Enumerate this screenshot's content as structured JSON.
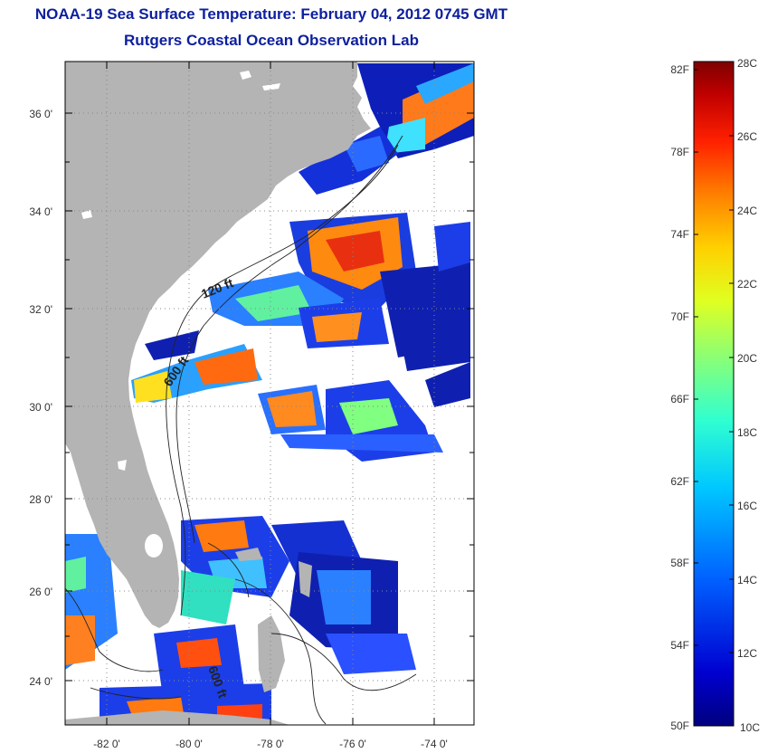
{
  "title": "NOAA-19 Sea Surface Temperature:  February 04, 2012 0745 GMT",
  "subtitle": "Rutgers Coastal Ocean Observation Lab",
  "lat_ticks": [
    "24 0'",
    "26 0'",
    "28 0'",
    "30 0'",
    "32 0'",
    "34 0'",
    "36 0'"
  ],
  "lon_ticks": [
    "-82 0'",
    "-80 0'",
    "-78 0'",
    "-76 0'",
    "-74 0'"
  ],
  "contour_labels": [
    "120 ft",
    "600 ft",
    "600 ft"
  ],
  "colorbar": {
    "f_labels": [
      "82F",
      "78F",
      "74F",
      "70F",
      "66F",
      "62F",
      "58F",
      "54F",
      "50F"
    ],
    "c_labels": [
      "28C",
      "26C",
      "24C",
      "22C",
      "20C",
      "18C",
      "16C",
      "14C",
      "12C",
      "10C"
    ],
    "colors": [
      "#00007f",
      "#0000c8",
      "#0033ff",
      "#0080ff",
      "#00ccff",
      "#33ffcc",
      "#80ff80",
      "#ccff33",
      "#ffee00",
      "#ffaa00",
      "#ff6600",
      "#ee1100",
      "#b00000",
      "#7f0000"
    ]
  },
  "colors": {
    "land": "#b4b4b4",
    "title": "#0d1f9e",
    "grid": "#888888"
  }
}
